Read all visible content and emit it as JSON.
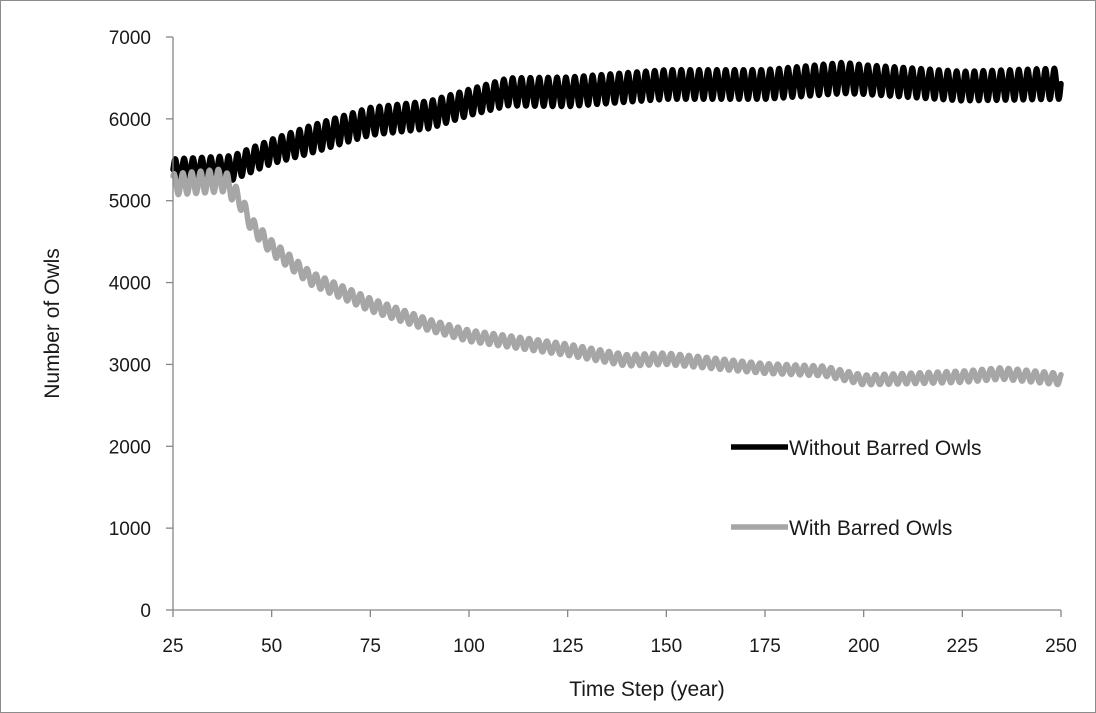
{
  "chart_data": {
    "type": "line",
    "title": "",
    "xlabel": "Time Step (year)",
    "ylabel": "Number of Owls",
    "xlim": [
      25,
      250
    ],
    "ylim": [
      0,
      7000
    ],
    "xticks": [
      25,
      50,
      75,
      100,
      125,
      150,
      175,
      200,
      225,
      250
    ],
    "yticks": [
      0,
      1000,
      2000,
      3000,
      4000,
      5000,
      6000,
      7000
    ],
    "grid": false,
    "legend_position": "center-right",
    "series": [
      {
        "name": "Without Barred Owls",
        "color": "#000000",
        "points": [
          {
            "x": 25,
            "y": 5380,
            "amp": 130
          },
          {
            "x": 40,
            "y": 5400,
            "amp": 150
          },
          {
            "x": 50,
            "y": 5600,
            "amp": 150
          },
          {
            "x": 60,
            "y": 5750,
            "amp": 170
          },
          {
            "x": 75,
            "y": 5970,
            "amp": 170
          },
          {
            "x": 90,
            "y": 6050,
            "amp": 170
          },
          {
            "x": 100,
            "y": 6200,
            "amp": 160
          },
          {
            "x": 110,
            "y": 6330,
            "amp": 170
          },
          {
            "x": 125,
            "y": 6330,
            "amp": 180
          },
          {
            "x": 150,
            "y": 6420,
            "amp": 180
          },
          {
            "x": 175,
            "y": 6420,
            "amp": 180
          },
          {
            "x": 195,
            "y": 6500,
            "amp": 190
          },
          {
            "x": 200,
            "y": 6480,
            "amp": 180
          },
          {
            "x": 225,
            "y": 6400,
            "amp": 180
          },
          {
            "x": 250,
            "y": 6430,
            "amp": 190
          }
        ]
      },
      {
        "name": "With Barred Owls",
        "color": "#a6a6a6",
        "points": [
          {
            "x": 25,
            "y": 5200,
            "amp": 130
          },
          {
            "x": 38,
            "y": 5250,
            "amp": 140
          },
          {
            "x": 42,
            "y": 5000,
            "amp": 100
          },
          {
            "x": 45,
            "y": 4700,
            "amp": 90
          },
          {
            "x": 50,
            "y": 4430,
            "amp": 90
          },
          {
            "x": 60,
            "y": 4050,
            "amp": 80
          },
          {
            "x": 75,
            "y": 3730,
            "amp": 80
          },
          {
            "x": 90,
            "y": 3480,
            "amp": 70
          },
          {
            "x": 100,
            "y": 3350,
            "amp": 70
          },
          {
            "x": 125,
            "y": 3180,
            "amp": 70
          },
          {
            "x": 140,
            "y": 3050,
            "amp": 70
          },
          {
            "x": 150,
            "y": 3070,
            "amp": 70
          },
          {
            "x": 175,
            "y": 2950,
            "amp": 60
          },
          {
            "x": 190,
            "y": 2920,
            "amp": 60
          },
          {
            "x": 200,
            "y": 2810,
            "amp": 60
          },
          {
            "x": 225,
            "y": 2850,
            "amp": 70
          },
          {
            "x": 235,
            "y": 2890,
            "amp": 70
          },
          {
            "x": 250,
            "y": 2820,
            "amp": 70
          }
        ]
      }
    ]
  }
}
